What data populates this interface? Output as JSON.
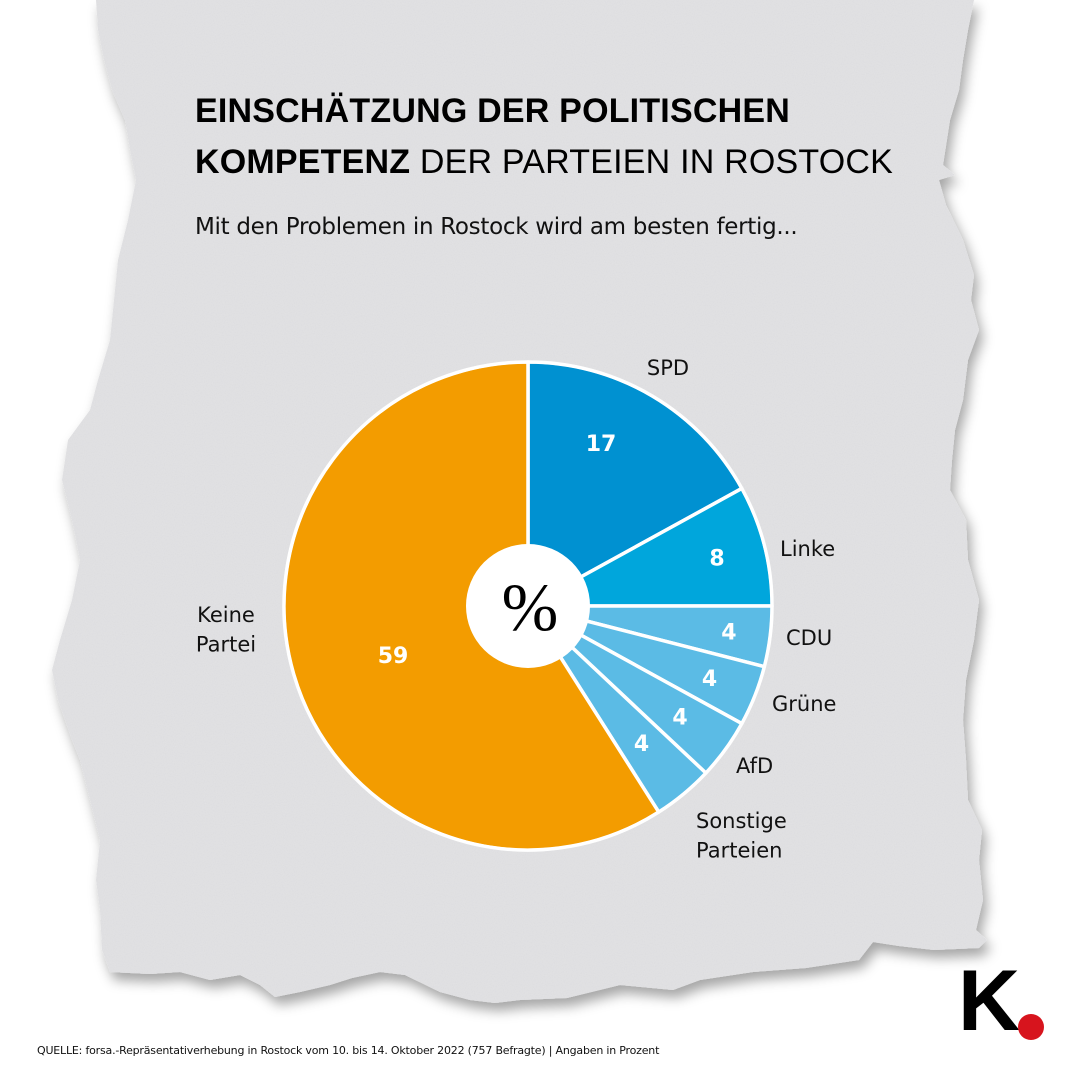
{
  "header": {
    "title_line1": "EINSCHÄTZUNG DER POLITISCHEN",
    "title_line2_bold": "KOMPETENZ",
    "title_line2_light": " DER PARTEIEN IN ROSTOCK",
    "subtitle": "Mit den Problemen in Rostock wird am besten fertig..."
  },
  "chart_data": {
    "type": "pie",
    "title": "EINSCHÄTZUNG DER POLITISCHEN KOMPETENZ DER PARTEIEN IN ROSTOCK",
    "subtitle": "Mit den Problemen in Rostock wird am besten fertig...",
    "unit_label": "%",
    "start": "top",
    "direction": "clockwise",
    "slices": [
      {
        "label": "SPD",
        "value": 17,
        "value_label": "17",
        "color": "#0091d1"
      },
      {
        "label": "Linke",
        "value": 8,
        "value_label": "8",
        "color": "#00a6dc"
      },
      {
        "label": "CDU",
        "value": 4,
        "value_label": "4",
        "color": "#5bbbe5"
      },
      {
        "label": "Grüne",
        "value": 4,
        "value_label": "4",
        "color": "#5bbbe5"
      },
      {
        "label": "AfD",
        "value": 4,
        "value_label": "4",
        "color": "#5bbbe5"
      },
      {
        "label": "Sonstige Parteien",
        "label_lines": [
          "Sonstige",
          "Parteien"
        ],
        "value": 4,
        "value_label": "4",
        "color": "#5bbbe5"
      },
      {
        "label": "Keine Partei",
        "label_lines": [
          "Keine",
          "Partei"
        ],
        "value": 59,
        "value_label": "59",
        "color": "#f39c00"
      }
    ]
  },
  "footer": {
    "source": "QUELLE: forsa.-Repräsentativerhebung in Rostock vom 10. bis 14. Oktober 2022 (757 Befragte) | Angaben in Prozent"
  },
  "logo": {
    "letter": "K",
    "dot_color": "#d7141d"
  }
}
